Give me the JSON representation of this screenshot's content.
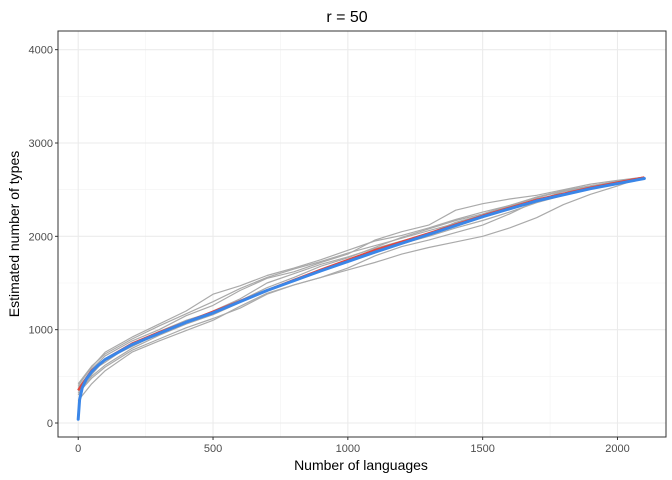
{
  "chart_data": {
    "type": "line",
    "title": "r = 50",
    "xlabel": "Number of languages",
    "ylabel": "Estimated number of types",
    "xlim": [
      -75,
      2180
    ],
    "ylim": [
      -150,
      4200
    ],
    "x_ticks": [
      0,
      500,
      1000,
      1500,
      2000
    ],
    "y_ticks": [
      0,
      1000,
      2000,
      3000,
      4000
    ],
    "grid": true,
    "legend": "none",
    "colors": {
      "samples": "#aaaaaa",
      "fit": "#e2453c",
      "estimate": "#3a86e8"
    },
    "series": [
      {
        "role": "fit",
        "x": [
          0,
          50,
          100,
          200,
          300,
          400,
          500,
          700,
          900,
          1100,
          1300,
          1500,
          1700,
          1900,
          2100
        ],
        "values": [
          350,
          560,
          680,
          850,
          970,
          1080,
          1190,
          1420,
          1640,
          1850,
          2030,
          2220,
          2390,
          2520,
          2630
        ]
      },
      {
        "role": "estimate",
        "x": [
          0,
          5,
          15,
          30,
          50,
          75,
          100,
          150,
          200,
          300,
          400,
          500,
          700,
          900,
          1100,
          1300,
          1500,
          1700,
          1900,
          2100
        ],
        "values": [
          40,
          250,
          380,
          470,
          550,
          620,
          680,
          760,
          840,
          960,
          1080,
          1180,
          1420,
          1630,
          1830,
          2020,
          2210,
          2380,
          2510,
          2620
        ]
      },
      {
        "role": "sample",
        "x": [
          0,
          50,
          100,
          200,
          300,
          400,
          500,
          600,
          700,
          800,
          900,
          1000,
          1100,
          1200,
          1300,
          1400,
          1500,
          1600,
          1700,
          1800,
          1900,
          2000,
          2090
        ],
        "values": [
          320,
          480,
          600,
          780,
          900,
          1020,
          1120,
          1230,
          1380,
          1480,
          1560,
          1660,
          1790,
          1890,
          1960,
          2040,
          2120,
          2240,
          2380,
          2480,
          2520,
          2560,
          2630
        ]
      },
      {
        "role": "sample",
        "x": [
          0,
          50,
          100,
          200,
          300,
          400,
          500,
          600,
          700,
          800,
          900,
          1000,
          1100,
          1200,
          1300,
          1400,
          1500,
          1600,
          1700,
          1800,
          1900,
          2000,
          2090
        ],
        "values": [
          400,
          600,
          760,
          920,
          1060,
          1200,
          1380,
          1470,
          1580,
          1660,
          1750,
          1850,
          1950,
          2010,
          2090,
          2180,
          2260,
          2330,
          2420,
          2480,
          2530,
          2580,
          2620
        ]
      },
      {
        "role": "sample",
        "x": [
          0,
          50,
          100,
          200,
          300,
          400,
          500,
          600,
          700,
          800,
          900,
          1000,
          1100,
          1200,
          1300,
          1400,
          1500,
          1600,
          1700,
          1800,
          1900,
          2000,
          2090
        ],
        "values": [
          360,
          580,
          720,
          880,
          1000,
          1150,
          1260,
          1420,
          1550,
          1620,
          1720,
          1810,
          1960,
          2050,
          2120,
          2280,
          2350,
          2400,
          2440,
          2500,
          2560,
          2600,
          2630
        ]
      },
      {
        "role": "sample",
        "x": [
          0,
          50,
          100,
          200,
          300,
          400,
          500,
          600,
          700,
          800,
          900,
          1000,
          1100,
          1200,
          1300,
          1400,
          1500,
          1600,
          1700,
          1800,
          1900,
          2000,
          2090
        ],
        "values": [
          300,
          520,
          680,
          820,
          960,
          1070,
          1200,
          1330,
          1500,
          1600,
          1700,
          1780,
          1870,
          1950,
          2030,
          2150,
          2230,
          2320,
          2420,
          2490,
          2540,
          2590,
          2630
        ]
      },
      {
        "role": "sample",
        "x": [
          0,
          50,
          100,
          200,
          300,
          400,
          500,
          600,
          700,
          800,
          900,
          1000,
          1100,
          1200,
          1300,
          1400,
          1500,
          1600,
          1700,
          1800,
          1900,
          2000,
          2090
        ],
        "values": [
          240,
          420,
          560,
          760,
          880,
          990,
          1100,
          1250,
          1390,
          1480,
          1560,
          1640,
          1720,
          1810,
          1880,
          1940,
          2000,
          2090,
          2200,
          2340,
          2450,
          2540,
          2630
        ]
      },
      {
        "role": "sample",
        "x": [
          0,
          50,
          100,
          200,
          300,
          400,
          500,
          600,
          700,
          800,
          900,
          1000,
          1100,
          1200,
          1300,
          1400,
          1500,
          1600,
          1700,
          1800,
          1900,
          2000,
          2090
        ],
        "values": [
          380,
          560,
          650,
          850,
          980,
          1100,
          1190,
          1310,
          1450,
          1560,
          1680,
          1770,
          1880,
          1990,
          2080,
          2170,
          2240,
          2330,
          2410,
          2490,
          2540,
          2590,
          2630
        ]
      },
      {
        "role": "sample",
        "x": [
          0,
          50,
          100,
          200,
          300,
          400,
          500,
          600,
          700,
          800,
          900,
          1000,
          1100,
          1200,
          1300,
          1400,
          1500,
          1600,
          1700,
          1800,
          1900,
          2000,
          2090
        ],
        "values": [
          340,
          500,
          620,
          800,
          940,
          1060,
          1160,
          1290,
          1420,
          1540,
          1640,
          1740,
          1830,
          1920,
          2000,
          2090,
          2170,
          2260,
          2360,
          2440,
          2510,
          2570,
          2630
        ]
      },
      {
        "role": "sample",
        "x": [
          0,
          50,
          100,
          200,
          300,
          400,
          500,
          600,
          700,
          800,
          900,
          1000,
          1100,
          1200,
          1300,
          1400,
          1500,
          1600,
          1700,
          1800,
          1900,
          2000,
          2090
        ],
        "values": [
          420,
          610,
          740,
          900,
          1040,
          1170,
          1300,
          1440,
          1560,
          1650,
          1730,
          1820,
          1900,
          1980,
          2060,
          2140,
          2220,
          2300,
          2370,
          2450,
          2520,
          2580,
          2630
        ]
      }
    ]
  }
}
